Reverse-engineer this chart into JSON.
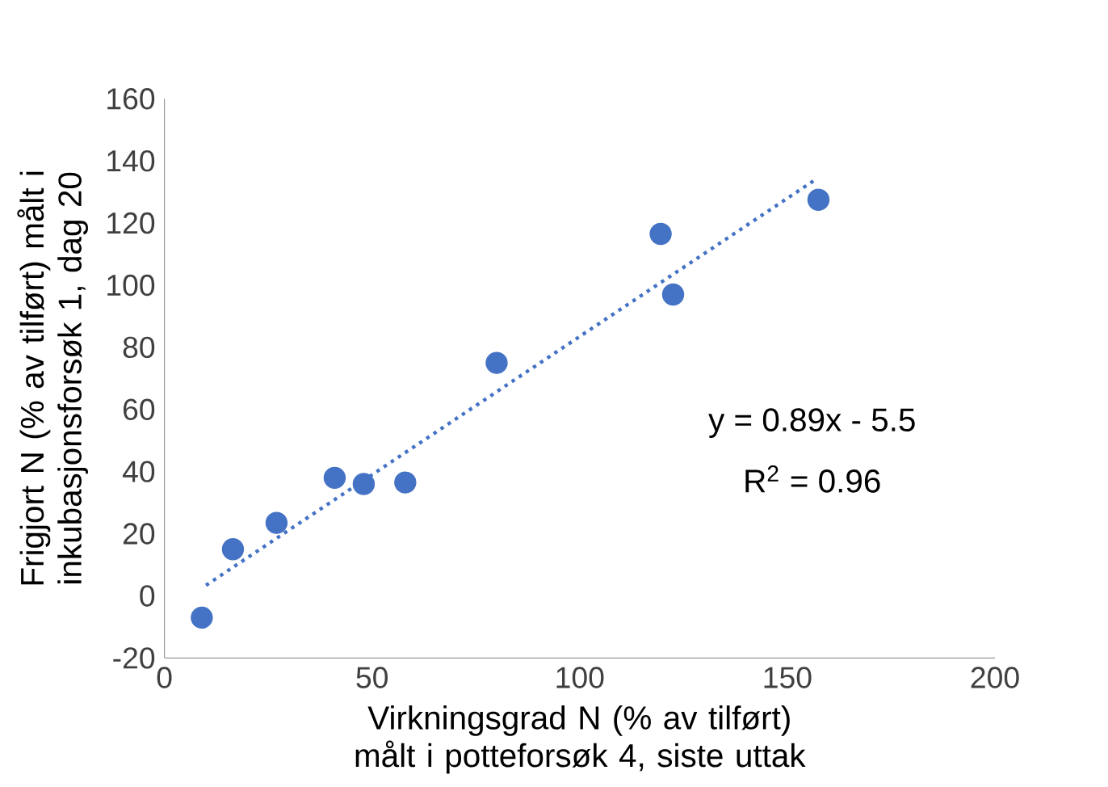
{
  "chart_data": {
    "type": "scatter",
    "xlabel": "Virkningsgrad N (% av tilført) målt i potteforsøk 4, siste uttak",
    "ylabel": "Frigjort N (% av tilført) målt i inkubasjonsforsøk 1, dag 20",
    "xlim": [
      0,
      200
    ],
    "ylim": [
      -20,
      160
    ],
    "xticks": [
      0,
      50,
      100,
      150,
      200
    ],
    "yticks": [
      -20,
      0,
      20,
      40,
      60,
      80,
      100,
      120,
      140,
      160
    ],
    "grid": false,
    "series": [
      {
        "marker": "circle",
        "color": "#4472c4",
        "x": [
          9,
          16.5,
          27,
          41,
          48,
          58,
          80,
          119.5,
          122.5,
          157.5
        ],
        "values": [
          -7,
          15,
          23.5,
          38,
          36,
          36.5,
          75,
          116.5,
          97,
          127.5
        ]
      },
      {
        "type": "line",
        "color": "#4472c4",
        "line_style": "dotted",
        "marker": "none",
        "x": [
          10,
          157
        ],
        "values": [
          3.4,
          134.2
        ]
      }
    ],
    "annotations": [
      "y = 0.89x - 5.5",
      "R$^{2}$ = 0.96"
    ]
  }
}
